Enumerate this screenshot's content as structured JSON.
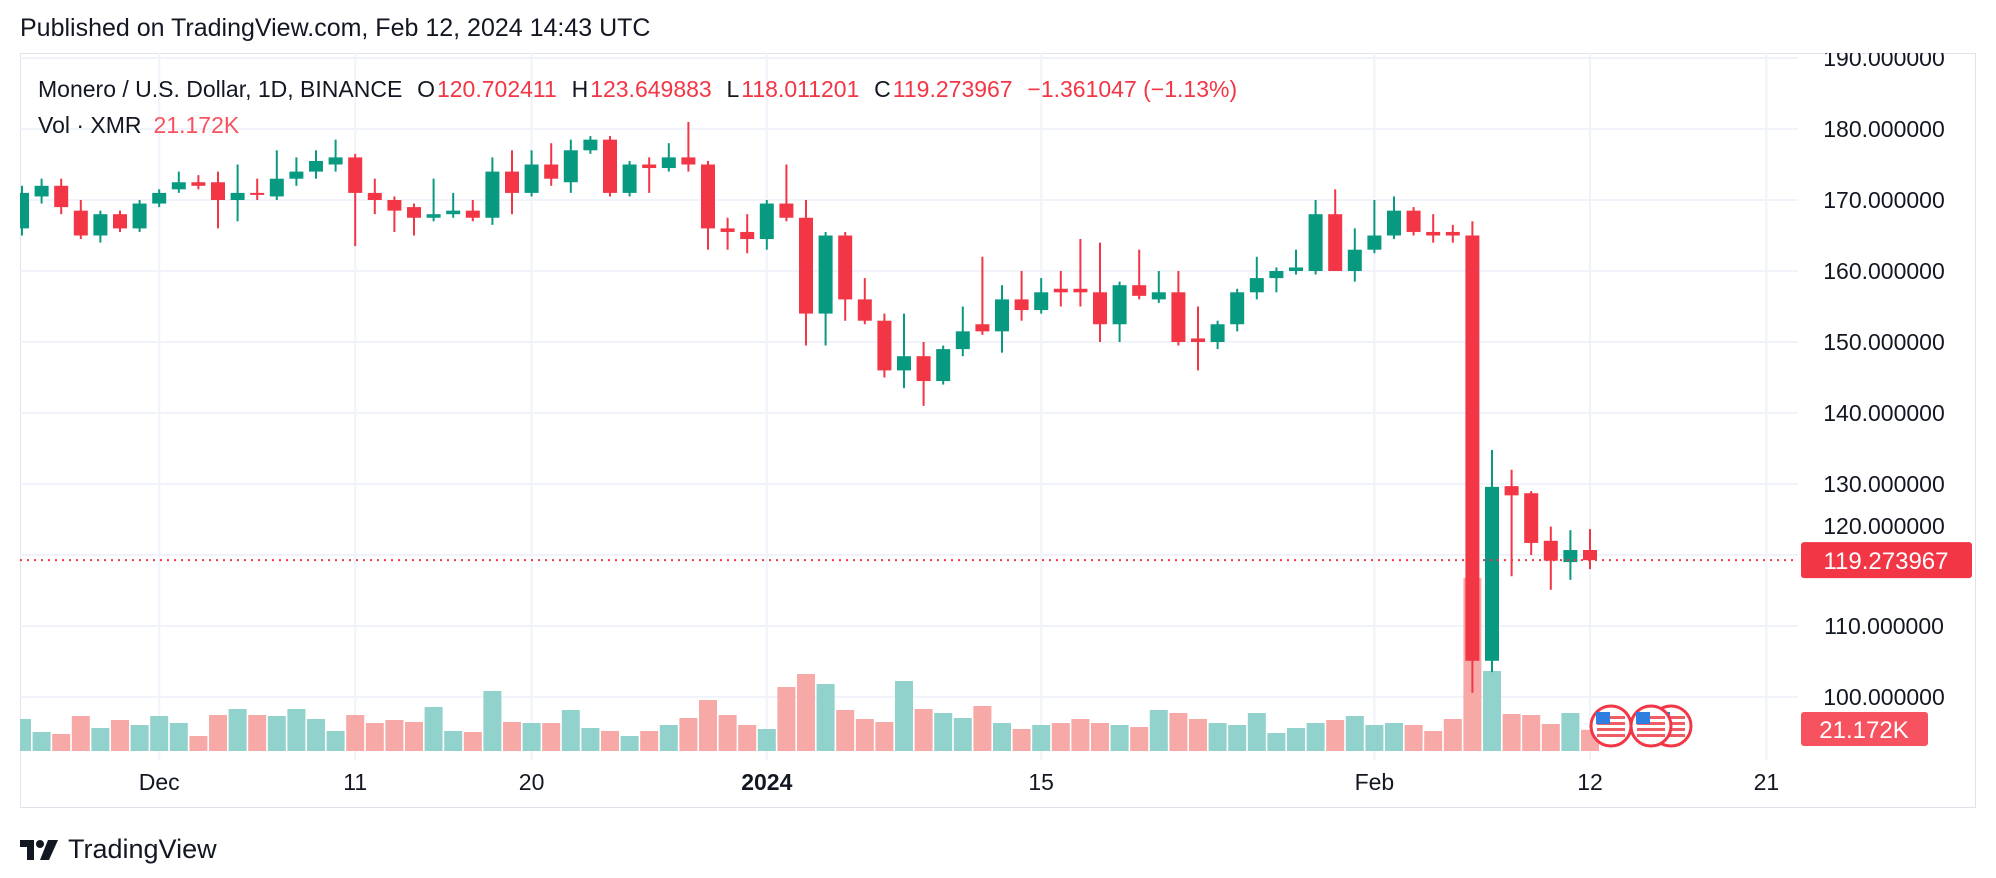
{
  "published": "Published on TradingView.com, Feb 12, 2024 14:43 UTC",
  "legend": {
    "symbol": "Monero / U.S. Dollar, 1D, BINANCE",
    "o_label": "O",
    "o": "120.702411",
    "h_label": "H",
    "h": "123.649883",
    "l_label": "L",
    "l": "118.011201",
    "c_label": "C",
    "c": "119.273967",
    "change": "−1.361047 (−1.13%)"
  },
  "volume_legend": {
    "label": "Vol · XMR",
    "value": "21.172K"
  },
  "footer": {
    "brand": "TradingView",
    "logo_icon": "tradingview-logo-icon"
  },
  "colors": {
    "up": "#089981",
    "down": "#f23645",
    "vol_up": "#92d2cc",
    "vol_down": "#f7a9a7",
    "grid": "#f0f3fa"
  },
  "chart_data": {
    "type": "candlestick",
    "interval": "1D",
    "ylim": [
      100,
      190
    ],
    "y_ticks": [
      "190.000000",
      "180.000000",
      "170.000000",
      "160.000000",
      "150.000000",
      "140.000000",
      "130.000000",
      "120.000000",
      "110.000000",
      "100.000000"
    ],
    "x_ticks": [
      {
        "label": "Dec",
        "date": "2023-12-01"
      },
      {
        "label": "11",
        "date": "2023-12-11"
      },
      {
        "label": "20",
        "date": "2023-12-20"
      },
      {
        "label": "2024",
        "date": "2024-01-01",
        "bold": true
      },
      {
        "label": "15",
        "date": "2024-01-15"
      },
      {
        "label": "Feb",
        "date": "2024-02-01"
      },
      {
        "label": "12",
        "date": "2024-02-12"
      },
      {
        "label": "21",
        "date": "2024-02-21"
      }
    ],
    "last_price_label": "119.273967",
    "last_volume_label": "21.172K",
    "start_date": "2023-11-24",
    "ohlc": [
      [
        166,
        172,
        165,
        171
      ],
      [
        170.5,
        173,
        169.5,
        172
      ],
      [
        172,
        173,
        168,
        169
      ],
      [
        168.5,
        170,
        164.5,
        165
      ],
      [
        165,
        168.5,
        164,
        168
      ],
      [
        168,
        168.5,
        165.5,
        166
      ],
      [
        166,
        170,
        165.5,
        169.5
      ],
      [
        169.5,
        171.5,
        169,
        171
      ],
      [
        171.5,
        174,
        171,
        172.5
      ],
      [
        172.5,
        173.5,
        171.5,
        172
      ],
      [
        172.5,
        174,
        166,
        170
      ],
      [
        170,
        175,
        167,
        171
      ],
      [
        171,
        173,
        170,
        170.8
      ],
      [
        170.5,
        177,
        170,
        173
      ],
      [
        173,
        176,
        172,
        174
      ],
      [
        174,
        177,
        173,
        175.5
      ],
      [
        175,
        178.5,
        174,
        176
      ],
      [
        176,
        176.5,
        163.5,
        171
      ],
      [
        171,
        173,
        168,
        170
      ],
      [
        170,
        170.5,
        165.5,
        168.5
      ],
      [
        169,
        169.5,
        165,
        167.5
      ],
      [
        167.5,
        173,
        167,
        168
      ],
      [
        168,
        171,
        167.5,
        168.5
      ],
      [
        168.5,
        170,
        167,
        167.5
      ],
      [
        167.5,
        176,
        166.5,
        174
      ],
      [
        174,
        177,
        168,
        171
      ],
      [
        171,
        177,
        170.5,
        175
      ],
      [
        175,
        178,
        172,
        173
      ],
      [
        172.5,
        178.5,
        171,
        177
      ],
      [
        177,
        179,
        176.5,
        178.5
      ],
      [
        178.5,
        179,
        170.5,
        171
      ],
      [
        171,
        175.5,
        170.5,
        175
      ],
      [
        175,
        176,
        171,
        174.5
      ],
      [
        174.5,
        178,
        174,
        176
      ],
      [
        176,
        181,
        174,
        175
      ],
      [
        175,
        175.5,
        163,
        166
      ],
      [
        166,
        167.5,
        163,
        165.5
      ],
      [
        165.5,
        168,
        162.5,
        164.5
      ],
      [
        164.5,
        170,
        163,
        169.5
      ],
      [
        169.5,
        175,
        167,
        167.5
      ],
      [
        167.5,
        170,
        149.5,
        154
      ],
      [
        154,
        165.5,
        149.5,
        165
      ],
      [
        165,
        165.5,
        153,
        156
      ],
      [
        156,
        159,
        152.5,
        153
      ],
      [
        153,
        154,
        145,
        146
      ],
      [
        146,
        154,
        143.5,
        148
      ],
      [
        148,
        150,
        141,
        144.5
      ],
      [
        144.5,
        149.5,
        144,
        149
      ],
      [
        149,
        155,
        148,
        151.5
      ],
      [
        152.5,
        162,
        151,
        151.5
      ],
      [
        151.5,
        158,
        148.5,
        156
      ],
      [
        156,
        160,
        153,
        154.5
      ],
      [
        154.5,
        159,
        154,
        157
      ],
      [
        157.5,
        160,
        155,
        157
      ],
      [
        157.5,
        164.5,
        155,
        157
      ],
      [
        157,
        164,
        150,
        152.5
      ],
      [
        152.5,
        158.5,
        150,
        158
      ],
      [
        158,
        163,
        156,
        156.5
      ],
      [
        156,
        160,
        155.5,
        157
      ],
      [
        157,
        160,
        149.5,
        150
      ],
      [
        150.5,
        155,
        146,
        150
      ],
      [
        150,
        153,
        149,
        152.5
      ],
      [
        152.5,
        157.5,
        151.5,
        157
      ],
      [
        157,
        162,
        156,
        159
      ],
      [
        159,
        160.5,
        157,
        160
      ],
      [
        160,
        163,
        159.5,
        160.5
      ],
      [
        160,
        170,
        159.5,
        168
      ],
      [
        168,
        171.5,
        160,
        160
      ],
      [
        160,
        166,
        158.5,
        163
      ],
      [
        163,
        170,
        162.5,
        165
      ],
      [
        165,
        170.5,
        164.5,
        168.5
      ],
      [
        168.5,
        169,
        165,
        165.5
      ],
      [
        165.5,
        168,
        164,
        165
      ],
      [
        165.5,
        166.5,
        164,
        165
      ],
      [
        165,
        167,
        100.6,
        105.1
      ],
      [
        105.1,
        134.8,
        103.5,
        129.6
      ],
      [
        129.7,
        132,
        117,
        128.4
      ],
      [
        128.7,
        129,
        120,
        121.7
      ],
      [
        122,
        124,
        115.1,
        119.2
      ],
      [
        119,
        123.5,
        116.5,
        120.7
      ],
      [
        120.702411,
        123.649883,
        118.011201,
        119.273967
      ]
    ],
    "volume_k": [
      32,
      19,
      17,
      35,
      23,
      31,
      26,
      35,
      28,
      15,
      36,
      42,
      36,
      35,
      42,
      32,
      20,
      36,
      28,
      31,
      29,
      44,
      20,
      19,
      60,
      29,
      28,
      28,
      41,
      23,
      20,
      15,
      20,
      26,
      33,
      51,
      36,
      26,
      22,
      64,
      77,
      67,
      41,
      32,
      29,
      70,
      42,
      38,
      33,
      45,
      28,
      22,
      26,
      28,
      32,
      28,
      26,
      24,
      41,
      38,
      32,
      28,
      26,
      38,
      18,
      23,
      28,
      31,
      35,
      26,
      28,
      26,
      20,
      32,
      173,
      80,
      37,
      36,
      27,
      38,
      21.172
    ],
    "event_markers": [
      "us-flag-icon",
      "us-flag-icon",
      "us-flag-icon"
    ]
  }
}
